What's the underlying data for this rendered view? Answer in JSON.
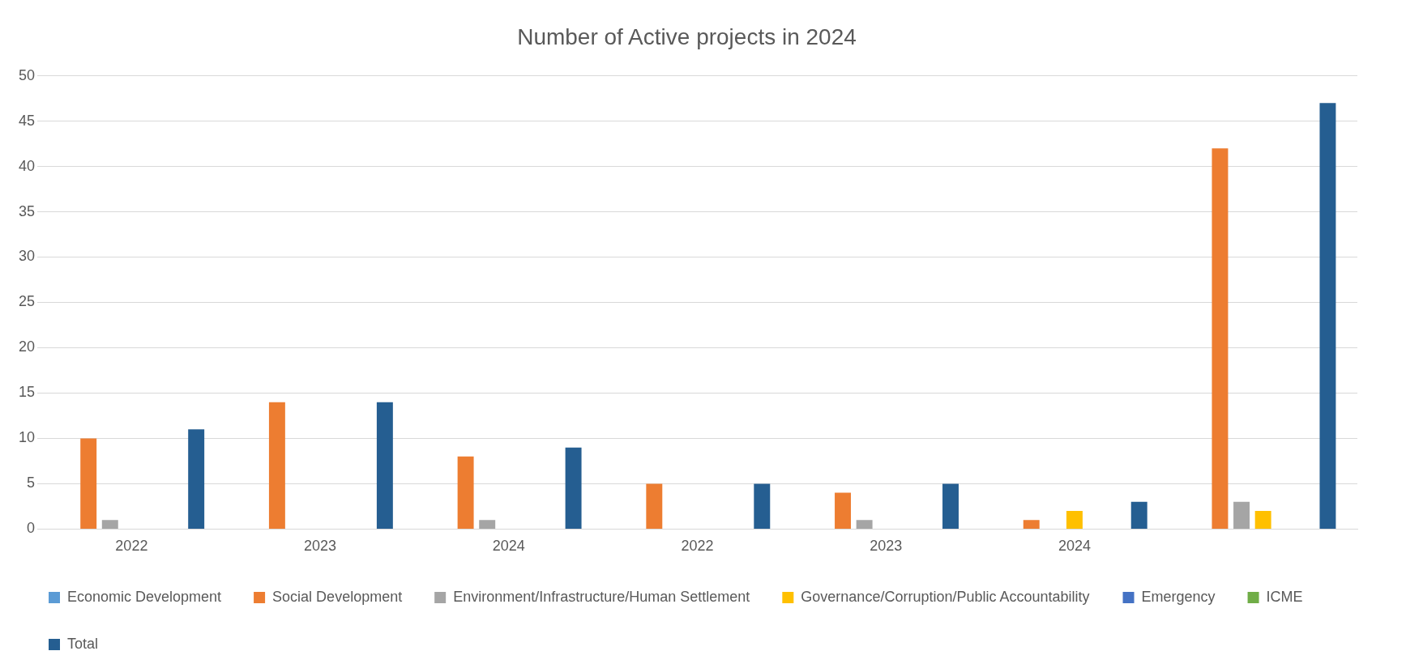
{
  "chart_data": {
    "type": "bar",
    "title": "Number of Active projects in 2024",
    "categories": [
      "2022",
      "2023",
      "2024",
      "2022",
      "2023",
      "2024",
      null
    ],
    "series": [
      {
        "name": "Economic Development",
        "color": "#5b9bd5",
        "values": [
          0,
          0,
          0,
          0,
          0,
          0,
          0
        ]
      },
      {
        "name": "Social Development",
        "color": "#ed7d31",
        "values": [
          10,
          14,
          8,
          5,
          4,
          1,
          42
        ]
      },
      {
        "name": "Environment/Infrastructure/Human Settlement",
        "color": "#a5a5a5",
        "values": [
          1,
          0,
          1,
          0,
          1,
          0,
          3
        ]
      },
      {
        "name": "Governance/Corruption/Public Accountability",
        "color": "#ffc000",
        "values": [
          0,
          0,
          0,
          0,
          0,
          2,
          2
        ]
      },
      {
        "name": "Emergency",
        "color": "#4472c4",
        "values": [
          0,
          0,
          0,
          0,
          0,
          0,
          0
        ]
      },
      {
        "name": "ICME",
        "color": "#70ad47",
        "values": [
          0,
          0,
          0,
          0,
          0,
          0,
          0
        ]
      },
      {
        "name": "Total",
        "color": "#255e91",
        "values": [
          11,
          14,
          9,
          5,
          5,
          3,
          47
        ]
      }
    ],
    "ylim": [
      0,
      50
    ],
    "yticks": [
      0,
      5,
      10,
      15,
      20,
      25,
      30,
      35,
      40,
      45,
      50
    ],
    "grid": "y",
    "legend": "bottom"
  }
}
